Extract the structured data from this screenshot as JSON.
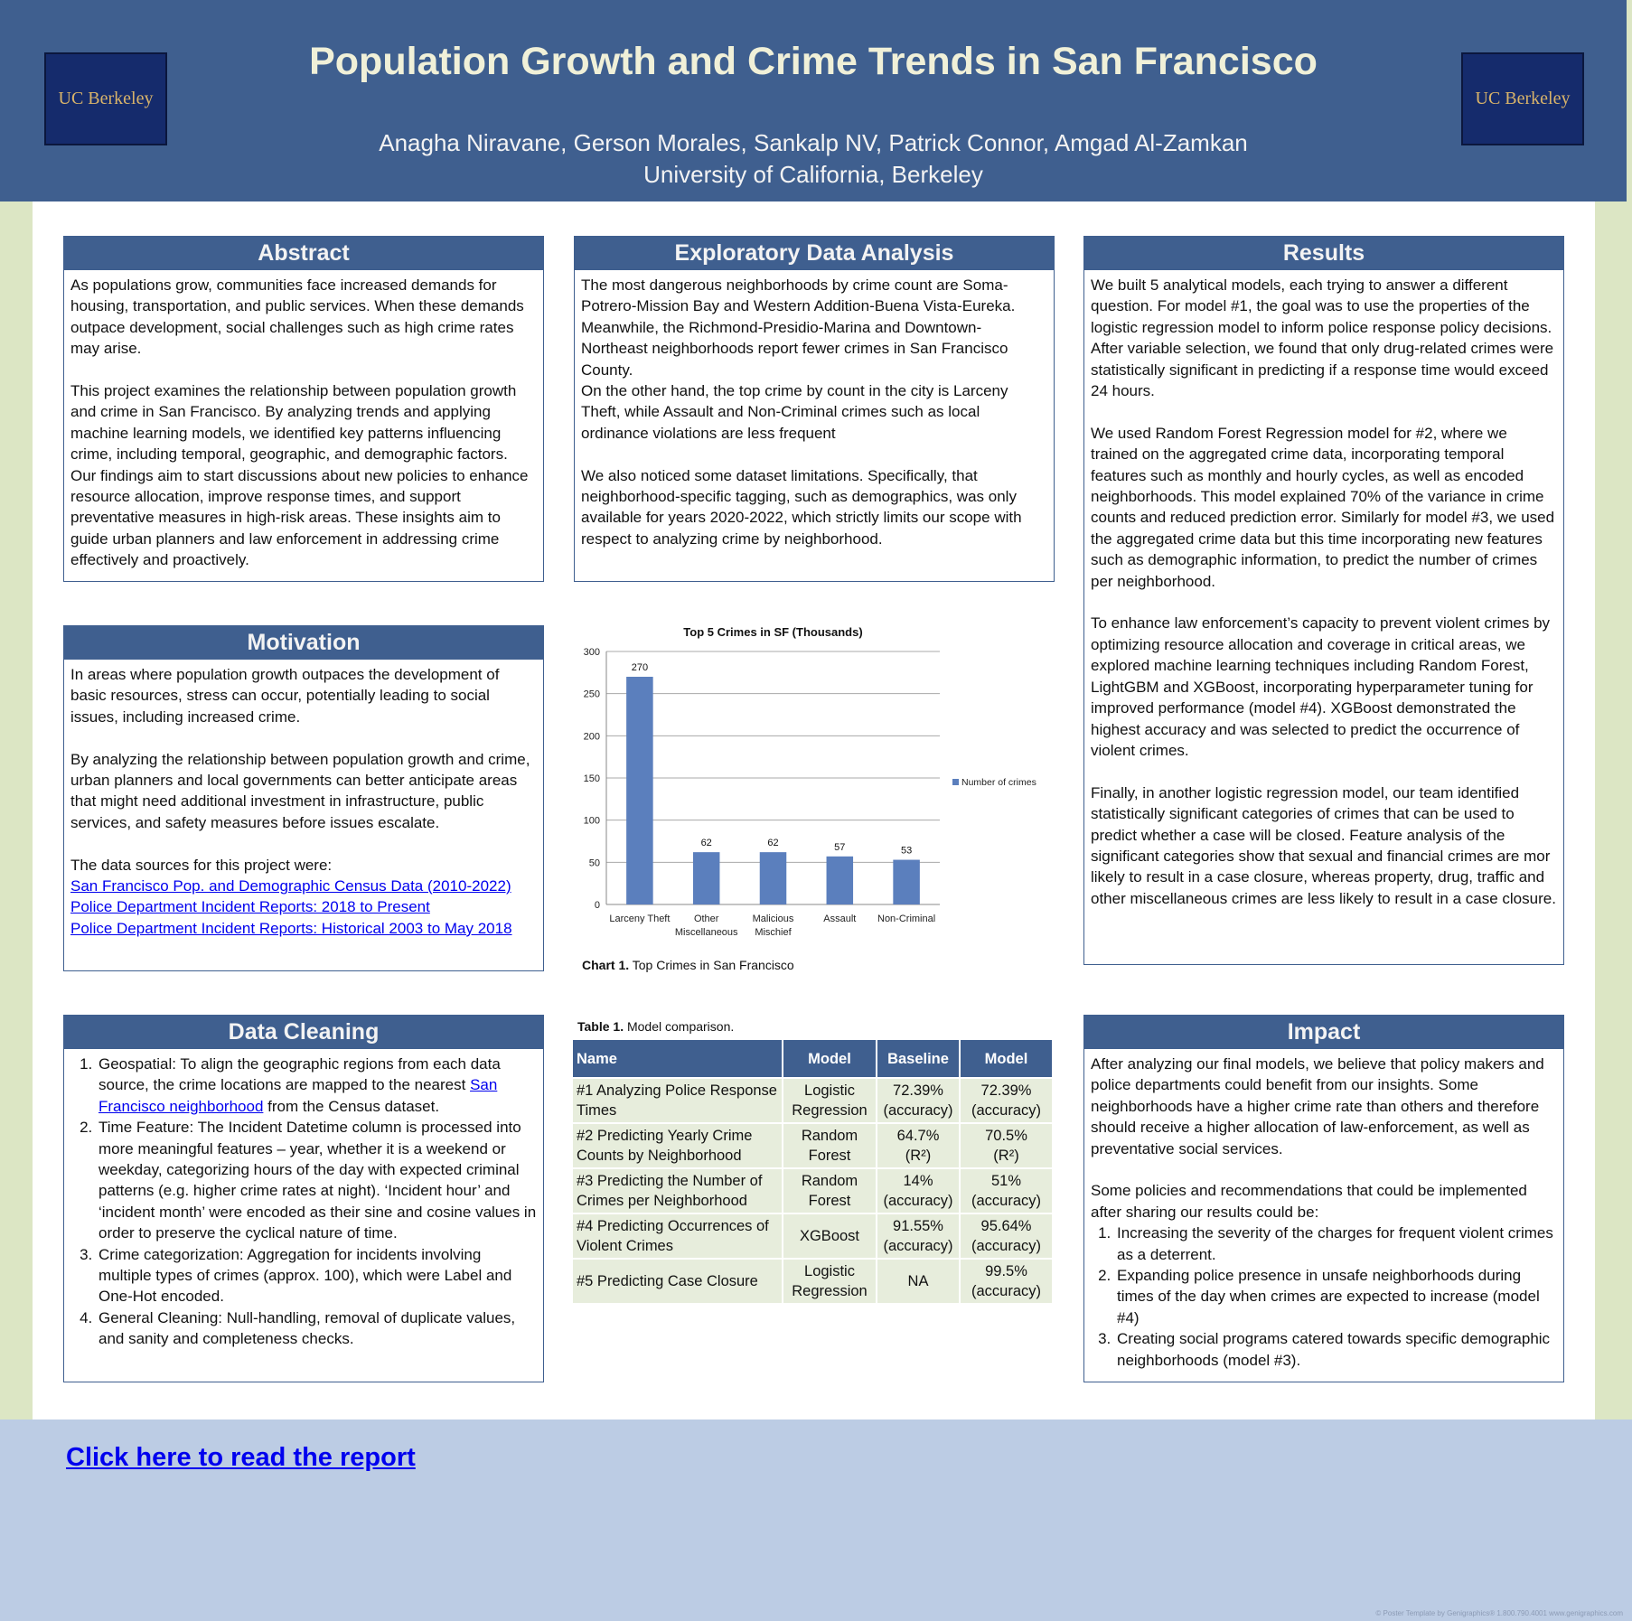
{
  "header": {
    "logo_text": "UC Berkeley",
    "title": "Population Growth and Crime Trends in San Francisco",
    "authors": "Anagha Niravane, Gerson Morales, Sankalp NV, Patrick Connor, Amgad Al-Zamkan",
    "affiliation": "University of California, Berkeley"
  },
  "abstract": {
    "heading": "Abstract",
    "paragraphs": [
      "As populations grow, communities face increased demands for housing, transportation, and public services. When these demands outpace development, social challenges such as high crime rates may arise.",
      "This project examines the relationship between population growth and crime in San Francisco. By analyzing trends and applying machine learning models, we identified key patterns influencing crime, including temporal, geographic, and demographic factors. Our findings aim to start discussions about new policies to enhance resource allocation, improve response times, and support preventative measures in high-risk areas. These insights aim to guide urban planners and law enforcement in addressing crime effectively and proactively."
    ]
  },
  "motivation": {
    "heading": "Motivation",
    "paragraphs": [
      "In areas where population growth outpaces the development of basic resources, stress can occur, potentially leading to social issues, including increased crime.",
      "By analyzing the relationship between population growth and crime, urban planners and local governments can better anticipate areas that might need additional investment in infrastructure, public services, and safety measures before issues escalate."
    ],
    "sources_intro": "The data sources for this project were:",
    "sources": [
      "San Francisco Pop. and Demographic Census Data (2010-2022)",
      "Police Department Incident Reports: 2018 to Present",
      "Police Department Incident Reports: Historical 2003 to May 2018"
    ]
  },
  "data_cleaning": {
    "heading": "Data Cleaning",
    "item1_before": "Geospatial: To align the geographic regions from each data source, the crime locations are mapped to the nearest ",
    "item1_link": "San Francisco neighborhood",
    "item1_after": " from the Census dataset.",
    "item2": "Time Feature: The Incident Datetime column is processed into more meaningful features – year, whether it is a weekend or weekday, categorizing hours of the day with expected criminal patterns (e.g. higher crime rates at night). ‘Incident hour’ and ‘incident month’ were encoded as their sine and cosine values in order to preserve the cyclical nature of time.",
    "item3": "Crime categorization: Aggregation for incidents involving multiple types of crimes (approx. 100), which were Label and One-Hot encoded.",
    "item4": "General Cleaning: Null-handling, removal of duplicate values, and sanity and completeness checks."
  },
  "eda": {
    "heading": "Exploratory Data Analysis",
    "p1a": "The most dangerous neighborhoods by crime count are Soma-Potrero-Mission Bay and Western Addition-Buena Vista-Eureka. Meanwhile, the Richmond-Presidio-Marina and Downtown-Northeast neighborhoods report fewer crimes in San Francisco County.",
    "p1b": "On the other hand, the top crime by count in the city is Larceny Theft, while Assault and Non-Criminal crimes such as local ordinance violations are less frequent",
    "p2": "We also noticed some dataset limitations. Specifically, that neighborhood-specific tagging, such as demographics, was only available for years 2020-2022, which strictly limits our scope with respect to analyzing crime by neighborhood."
  },
  "chart_data": {
    "type": "bar",
    "title": "Top 5 Crimes in SF (Thousands)",
    "categories": [
      "Larceny Theft",
      "Other Miscellaneous",
      "Malicious Mischief",
      "Assault",
      "Non-Criminal"
    ],
    "category_lines": [
      [
        "Larceny Theft"
      ],
      [
        "Other",
        "Miscellaneous"
      ],
      [
        "Malicious",
        "Mischief"
      ],
      [
        "Assault"
      ],
      [
        "Non-Criminal"
      ]
    ],
    "series": [
      {
        "name": "Number of crimes",
        "values": [
          270,
          62,
          62,
          57,
          53
        ]
      }
    ],
    "ylim": [
      0,
      300
    ],
    "yticks": [
      0,
      50,
      100,
      150,
      200,
      250,
      300
    ],
    "data_labels": true,
    "grid": true,
    "legend": "right",
    "bar_color": "#5b7fbd"
  },
  "chart_caption": {
    "label": "Chart 1.",
    "text": " Top Crimes in San Francisco"
  },
  "table_caption": {
    "label": "Table 1.",
    "text": " Model comparison."
  },
  "model_table": {
    "headers": [
      "Name",
      "Model",
      "Baseline",
      "Model"
    ],
    "rows": [
      {
        "name": "#1 Analyzing Police Response Times",
        "model": [
          "Logistic",
          "Regression"
        ],
        "baseline": [
          "72.39%",
          "(accuracy)"
        ],
        "result": [
          "72.39%",
          "(accuracy)"
        ]
      },
      {
        "name": "#2 Predicting Yearly Crime Counts by Neighborhood",
        "model": [
          "Random",
          "Forest"
        ],
        "baseline": [
          "64.7%",
          "(R²)"
        ],
        "result": [
          "70.5%",
          "(R²)"
        ]
      },
      {
        "name": "#3 Predicting the Number of Crimes per Neighborhood",
        "model": [
          "Random",
          "Forest"
        ],
        "baseline": [
          "14%",
          "(accuracy)"
        ],
        "result": [
          "51%",
          "(accuracy)"
        ]
      },
      {
        "name": "#4 Predicting Occurrences of Violent Crimes",
        "model": [
          "XGBoost"
        ],
        "baseline": [
          "91.55%",
          "(accuracy)"
        ],
        "result": [
          "95.64%",
          "(accuracy)"
        ]
      },
      {
        "name": "#5 Predicting Case Closure",
        "model": [
          "Logistic",
          "Regression"
        ],
        "baseline": [
          "NA"
        ],
        "result": [
          "99.5%",
          "(accuracy)"
        ]
      }
    ]
  },
  "results": {
    "heading": "Results",
    "paragraphs": [
      "We built 5 analytical models, each trying to answer a different question. For model #1, the goal was to use the properties of the logistic regression model to inform police response policy decisions. After variable selection, we found that only drug-related crimes were statistically significant in predicting if a response time would exceed 24 hours.",
      "We used Random Forest Regression model for #2, where we trained on the aggregated crime data, incorporating temporal features such as monthly and hourly cycles, as well as encoded neighborhoods. This model explained 70% of the variance in crime counts and reduced prediction error. Similarly for model #3, we used the aggregated crime data but this time incorporating new features such as demographic information, to predict the number of crimes per neighborhood.",
      "To enhance law enforcement’s capacity to prevent violent crimes by optimizing resource allocation and coverage in critical areas, we explored machine learning techniques including Random Forest, LightGBM and XGBoost, incorporating hyperparameter tuning for improved performance (model #4). XGBoost demonstrated the highest accuracy and was selected to predict the occurrence of violent crimes.",
      "Finally, in another logistic regression model, our team identified statistically significant categories of crimes that can be used to predict whether a case will be closed. Feature analysis of the significant categories show that sexual and financial crimes are mor likely to result in a case closure, whereas property, drug, traffic and other miscellaneous crimes are less likely to result in a case closure."
    ]
  },
  "impact": {
    "heading": "Impact",
    "p1": "After analyzing our final models, we believe that policy makers and police departments could benefit from our insights. Some neighborhoods have a higher crime rate than others and therefore should receive a higher allocation of law-enforcement, as well as preventative social services.",
    "p2": "Some policies and recommendations that could be implemented after sharing our results could be:",
    "items": [
      "Increasing the severity of the charges for frequent violent crimes as a deterrent.",
      "Expanding police presence in unsafe neighborhoods during times of the day when crimes are expected to increase (model #4)",
      "Creating social programs catered towards specific demographic neighborhoods (model #3)."
    ]
  },
  "footer": {
    "report_link": "Click here to read the report",
    "note": "© Poster Template by Genigraphics® 1.800.790.4001 www.genigraphics.com"
  }
}
